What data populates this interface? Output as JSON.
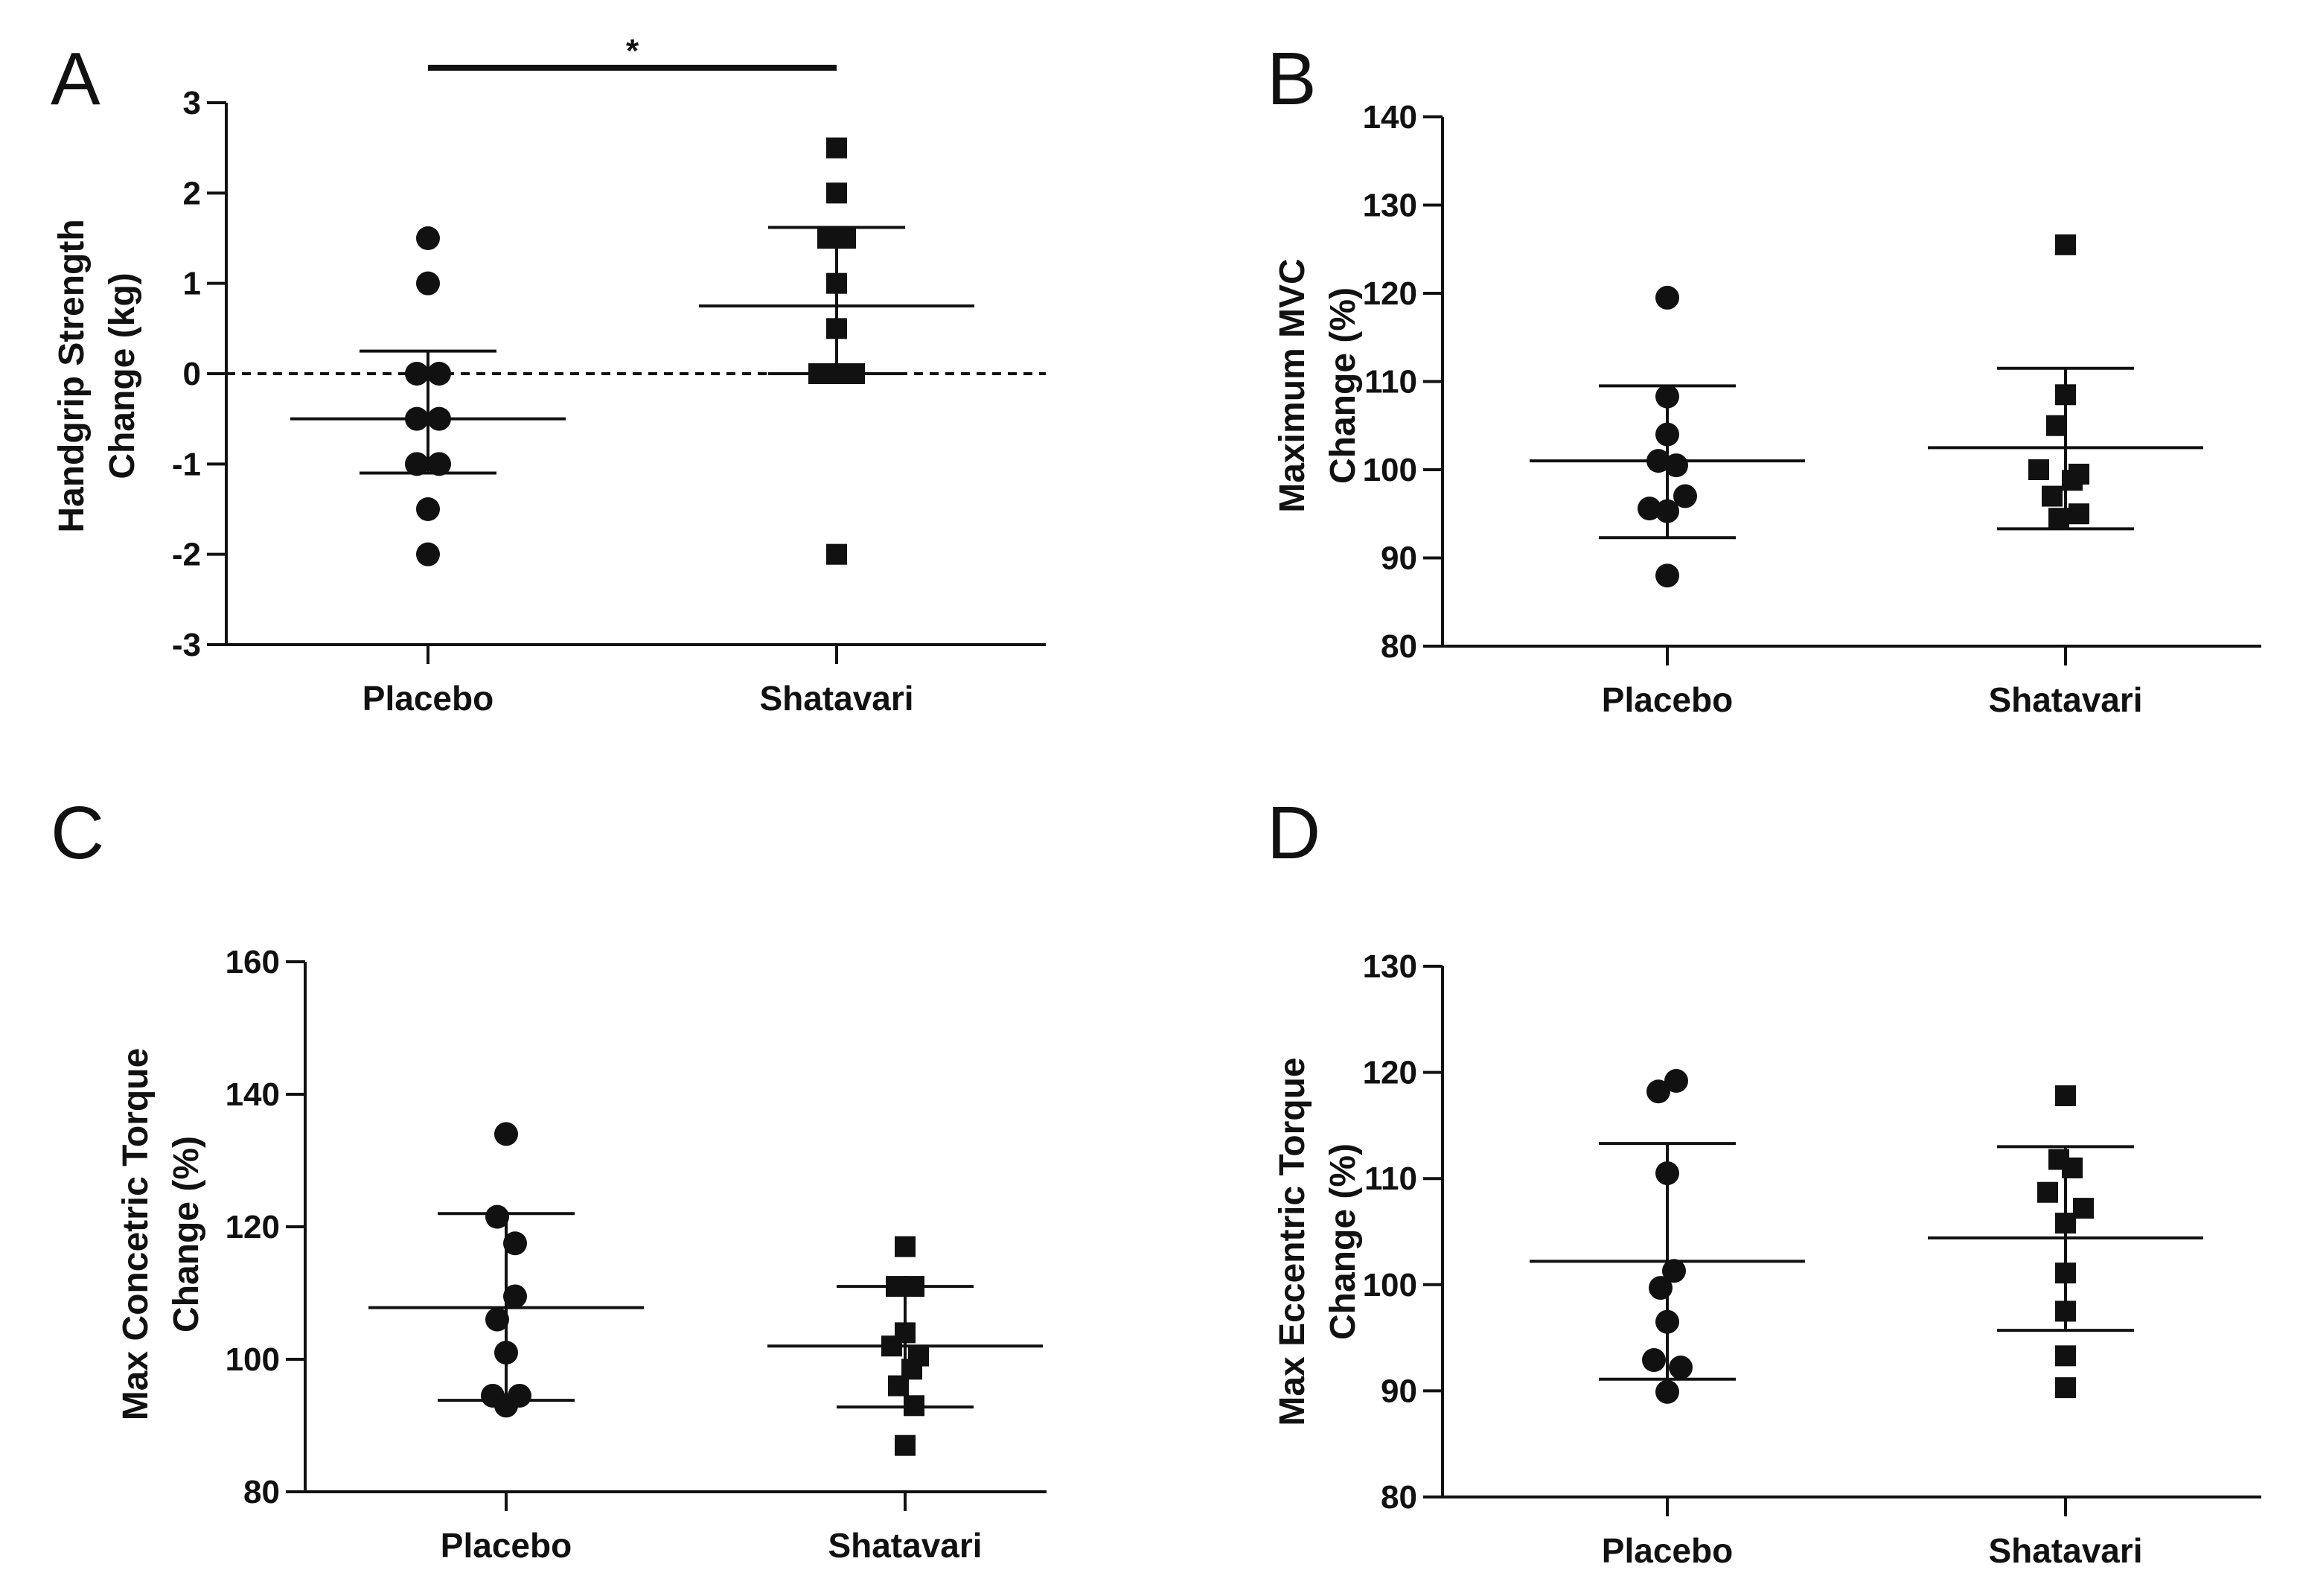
{
  "chart_data": [
    {
      "panel": "A",
      "type": "scatter",
      "ylabel": [
        "Handgrip Strength",
        "Change (kg)"
      ],
      "categories": [
        "Placebo",
        "Shatavari"
      ],
      "ylim": [
        -3,
        3
      ],
      "yticks": [
        -3,
        -2,
        -1,
        0,
        1,
        2,
        3
      ],
      "reference_line": 0,
      "significance": {
        "label": "*",
        "between": [
          "Placebo",
          "Shatavari"
        ]
      },
      "series": [
        {
          "name": "Placebo",
          "marker": "circle",
          "mean": -0.5,
          "sd_upper": 0.25,
          "sd_lower": -1.1,
          "points": [
            [
              0,
              1.5
            ],
            [
              0,
              1.0
            ],
            [
              -0.25,
              0
            ],
            [
              0.25,
              0
            ],
            [
              -0.25,
              -0.5
            ],
            [
              0.25,
              -0.5
            ],
            [
              -0.25,
              -1.0
            ],
            [
              0.25,
              -1.0
            ],
            [
              0,
              -1.5
            ],
            [
              0,
              -2.0
            ]
          ]
        },
        {
          "name": "Shatavari",
          "marker": "square",
          "mean": 0.75,
          "sd_upper": 1.62,
          "sd_lower": 0,
          "points": [
            [
              0,
              2.5
            ],
            [
              0,
              2.0
            ],
            [
              -0.2,
              1.5
            ],
            [
              0.2,
              1.5
            ],
            [
              0,
              1.0
            ],
            [
              0,
              0.5
            ],
            [
              -0.4,
              0
            ],
            [
              0,
              0
            ],
            [
              0.4,
              0
            ],
            [
              0,
              -2.0
            ]
          ]
        }
      ]
    },
    {
      "panel": "B",
      "type": "scatter",
      "ylabel": [
        "Maximum MVC",
        "Change  (%)"
      ],
      "categories": [
        "Placebo",
        "Shatavari"
      ],
      "ylim": [
        80,
        140
      ],
      "yticks": [
        80,
        90,
        100,
        110,
        120,
        130,
        140
      ],
      "series": [
        {
          "name": "Placebo",
          "marker": "circle",
          "mean": 101,
          "sd_upper": 109.5,
          "sd_lower": 92.3,
          "points": [
            [
              0,
              119.5
            ],
            [
              0,
              108.3
            ],
            [
              0,
              104
            ],
            [
              -0.2,
              101
            ],
            [
              0.2,
              100.5
            ],
            [
              -0.4,
              95.6
            ],
            [
              0.4,
              97
            ],
            [
              0,
              95.3
            ],
            [
              0,
              88
            ]
          ]
        },
        {
          "name": "Shatavari",
          "marker": "square",
          "mean": 102.5,
          "sd_upper": 111.5,
          "sd_lower": 93.3,
          "points": [
            [
              0,
              125.5
            ],
            [
              0,
              108.5
            ],
            [
              -0.2,
              105
            ],
            [
              -0.6,
              100
            ],
            [
              0.3,
              99.5
            ],
            [
              -0.3,
              97
            ],
            [
              0.15,
              98.8
            ],
            [
              -0.15,
              94.5
            ],
            [
              0.3,
              95
            ]
          ]
        }
      ]
    },
    {
      "panel": "C",
      "type": "scatter",
      "ylabel": [
        "Max Concetric Torque",
        "Change (%)"
      ],
      "categories": [
        "Placebo",
        "Shatavari"
      ],
      "ylim": [
        80,
        160
      ],
      "yticks": [
        80,
        100,
        120,
        140,
        160
      ],
      "series": [
        {
          "name": "Placebo",
          "marker": "circle",
          "mean": 107.8,
          "sd_upper": 122,
          "sd_lower": 93.8,
          "points": [
            [
              0,
              134
            ],
            [
              -0.2,
              121.5
            ],
            [
              0.2,
              117.5
            ],
            [
              0.2,
              109.5
            ],
            [
              -0.2,
              106
            ],
            [
              0,
              101
            ],
            [
              -0.3,
              94.5
            ],
            [
              0,
              93
            ],
            [
              0.3,
              94.5
            ]
          ]
        },
        {
          "name": "Shatavari",
          "marker": "square",
          "mean": 102,
          "sd_upper": 111,
          "sd_lower": 92.8,
          "points": [
            [
              0,
              117
            ],
            [
              -0.2,
              111
            ],
            [
              0.2,
              111
            ],
            [
              0,
              104
            ],
            [
              -0.3,
              102
            ],
            [
              0.3,
              100.5
            ],
            [
              -0.15,
              96
            ],
            [
              0.15,
              98.5
            ],
            [
              0.2,
              93
            ],
            [
              0,
              87
            ]
          ]
        }
      ]
    },
    {
      "panel": "D",
      "type": "scatter",
      "ylabel": [
        "Max Eccentric Torque",
        "Change (%)"
      ],
      "categories": [
        "Placebo",
        "Shatavari"
      ],
      "ylim": [
        80,
        130
      ],
      "yticks": [
        80,
        90,
        100,
        110,
        120,
        130
      ],
      "series": [
        {
          "name": "Placebo",
          "marker": "circle",
          "mean": 102.2,
          "sd_upper": 113.3,
          "sd_lower": 91.1,
          "points": [
            [
              -0.2,
              118.2
            ],
            [
              0.2,
              119.2
            ],
            [
              0,
              110.5
            ],
            [
              0.15,
              101.3
            ],
            [
              -0.15,
              99.7
            ],
            [
              0,
              96.5
            ],
            [
              -0.3,
              92.9
            ],
            [
              0.3,
              92.2
            ],
            [
              0,
              89.9
            ]
          ]
        },
        {
          "name": "Shatavari",
          "marker": "square",
          "mean": 104.4,
          "sd_upper": 113,
          "sd_lower": 95.7,
          "points": [
            [
              0,
              117.8
            ],
            [
              -0.15,
              111.8
            ],
            [
              0.15,
              111
            ],
            [
              -0.4,
              108.7
            ],
            [
              0.4,
              107.2
            ],
            [
              0,
              105.8
            ],
            [
              0,
              101.1
            ],
            [
              0,
              97.5
            ],
            [
              0,
              93.3
            ],
            [
              0,
              90.3
            ]
          ]
        }
      ]
    }
  ]
}
